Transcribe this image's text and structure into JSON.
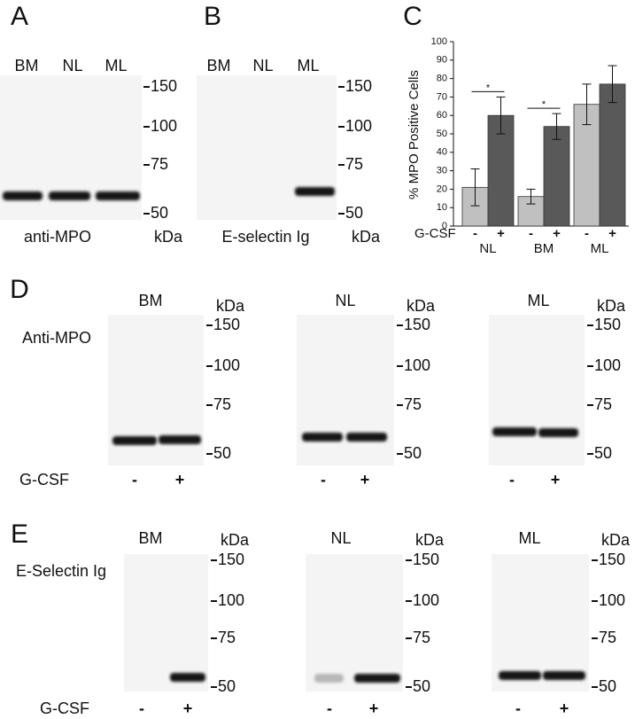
{
  "panels": {
    "A": {
      "label": "A",
      "lanes": [
        "BM",
        "NL",
        "ML"
      ],
      "markers": [
        150,
        100,
        75,
        50
      ],
      "antibody": "anti-MPO",
      "unit": "kDa"
    },
    "B": {
      "label": "B",
      "lanes": [
        "BM",
        "NL",
        "ML"
      ],
      "markers": [
        150,
        100,
        75,
        50
      ],
      "antibody": "E-selectin Ig",
      "unit": "kDa"
    },
    "D": {
      "label": "D",
      "row_label": "Anti-MPO",
      "treatment": "G-CSF",
      "lanes": [
        "-",
        "+"
      ],
      "markers": [
        150,
        100,
        75,
        50
      ],
      "unit": "kDa",
      "blots": [
        "BM",
        "NL",
        "ML"
      ]
    },
    "E": {
      "label": "E",
      "row_label": "E-Selectin Ig",
      "treatment": "G-CSF",
      "lanes": [
        "-",
        "+"
      ],
      "markers": [
        150,
        100,
        75,
        50
      ],
      "unit": "kDa",
      "blots": [
        "BM",
        "NL",
        "ML"
      ]
    }
  },
  "chart_data": {
    "type": "bar",
    "panel_label": "C",
    "y_label": "% MPO Positive Cells",
    "x_label": "G-CSF",
    "categories": [
      "NL",
      "BM",
      "ML"
    ],
    "series": [
      {
        "name": "-",
        "color": "#c0c0c0",
        "values": [
          21,
          16,
          66
        ],
        "errors": [
          10,
          4,
          11
        ]
      },
      {
        "name": "+",
        "color": "#595959",
        "values": [
          60,
          54,
          77
        ],
        "errors": [
          10,
          7,
          10
        ]
      }
    ],
    "annotations": [
      "*",
      "*"
    ],
    "ylim": [
      0,
      100
    ],
    "yticks": [
      0,
      10,
      20,
      30,
      40,
      50,
      60,
      70,
      80,
      90,
      100
    ]
  }
}
